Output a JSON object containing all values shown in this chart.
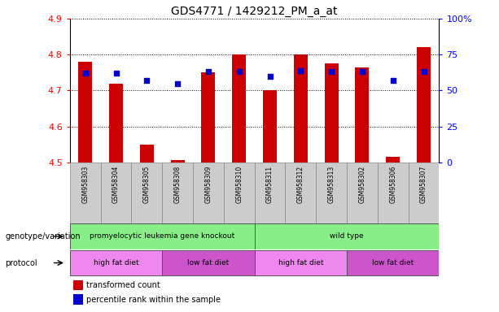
{
  "title": "GDS4771 / 1429212_PM_a_at",
  "samples": [
    "GSM958303",
    "GSM958304",
    "GSM958305",
    "GSM958308",
    "GSM958309",
    "GSM958310",
    "GSM958311",
    "GSM958312",
    "GSM958313",
    "GSM958302",
    "GSM958306",
    "GSM958307"
  ],
  "bar_values": [
    4.78,
    4.72,
    4.55,
    4.505,
    4.75,
    4.8,
    4.7,
    4.8,
    4.775,
    4.765,
    4.515,
    4.82
  ],
  "dot_values": [
    62,
    62,
    57,
    55,
    63,
    63,
    60,
    64,
    63,
    63,
    57,
    63
  ],
  "ylim_left": [
    4.5,
    4.9
  ],
  "ylim_right": [
    0,
    100
  ],
  "yticks_left": [
    4.5,
    4.6,
    4.7,
    4.8,
    4.9
  ],
  "yticks_right": [
    0,
    25,
    50,
    75,
    100
  ],
  "bar_color": "#cc0000",
  "dot_color": "#0000cc",
  "bar_bottom": 4.5,
  "genotype_groups": [
    {
      "label": "promyelocytic leukemia gene knockout",
      "start": 0,
      "end": 6,
      "color": "#88ee88"
    },
    {
      "label": "wild type",
      "start": 6,
      "end": 12,
      "color": "#88ee88"
    }
  ],
  "protocol_groups": [
    {
      "label": "high fat diet",
      "start": 0,
      "end": 3,
      "color": "#ee88ee"
    },
    {
      "label": "low fat diet",
      "start": 3,
      "end": 6,
      "color": "#cc55cc"
    },
    {
      "label": "high fat diet",
      "start": 6,
      "end": 9,
      "color": "#ee88ee"
    },
    {
      "label": "low fat diet",
      "start": 9,
      "end": 12,
      "color": "#cc55cc"
    }
  ],
  "legend_items": [
    {
      "label": "transformed count",
      "color": "#cc0000"
    },
    {
      "label": "percentile rank within the sample",
      "color": "#0000cc"
    }
  ],
  "genotype_label": "genotype/variation",
  "protocol_label": "protocol",
  "sample_bg_color": "#cccccc",
  "title_fontsize": 10
}
